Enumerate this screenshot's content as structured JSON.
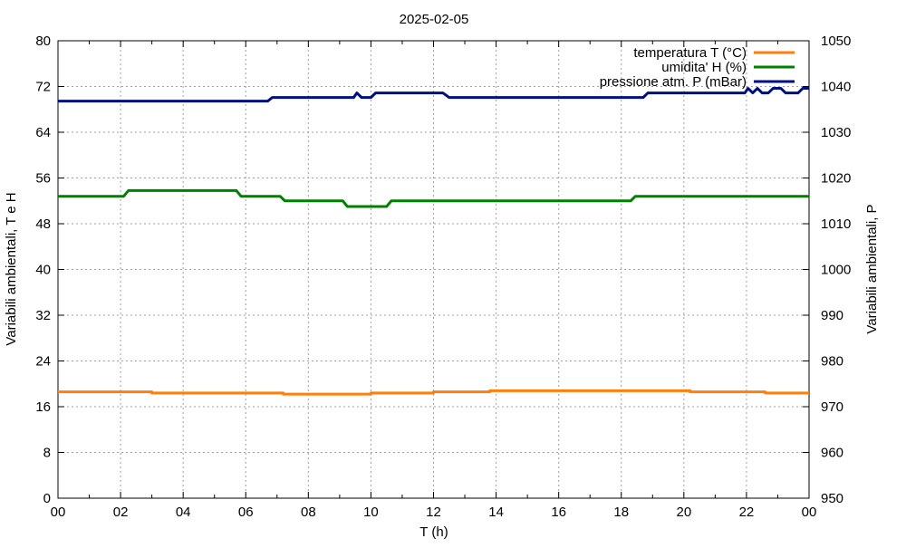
{
  "chart_data": {
    "type": "line",
    "title": "2025-02-05",
    "xlabel": "T (h)",
    "ylabel_left": "Variabili ambientali, T e H",
    "ylabel_right": "Variabili ambientali, P",
    "xlim": [
      0,
      24
    ],
    "ylim_left": [
      0,
      80
    ],
    "ylim_right": [
      950,
      1050
    ],
    "x_ticks": [
      "00",
      "02",
      "04",
      "06",
      "08",
      "10",
      "12",
      "14",
      "16",
      "18",
      "20",
      "22",
      "00"
    ],
    "y_ticks_left": [
      "0",
      "8",
      "16",
      "24",
      "32",
      "40",
      "48",
      "56",
      "64",
      "72",
      "80"
    ],
    "y_ticks_right": [
      "950",
      "960",
      "970",
      "980",
      "990",
      "1000",
      "1010",
      "1020",
      "1030",
      "1040",
      "1050"
    ],
    "grid": true,
    "legend_position": "top-right",
    "series": [
      {
        "name": "temperatura T (°C)",
        "axis": "left",
        "color": "#ff7f0e",
        "points": [
          [
            0,
            18.6
          ],
          [
            3.0,
            18.6
          ],
          [
            3.0,
            18.4
          ],
          [
            7.2,
            18.4
          ],
          [
            7.2,
            18.2
          ],
          [
            10.0,
            18.2
          ],
          [
            10.0,
            18.4
          ],
          [
            12.0,
            18.4
          ],
          [
            12.0,
            18.6
          ],
          [
            13.8,
            18.6
          ],
          [
            13.8,
            18.8
          ],
          [
            20.2,
            18.8
          ],
          [
            20.2,
            18.6
          ],
          [
            22.6,
            18.6
          ],
          [
            22.6,
            18.4
          ],
          [
            24.0,
            18.4
          ]
        ]
      },
      {
        "name": "umidita' H (%)",
        "axis": "left",
        "color": "#008000",
        "points": [
          [
            0,
            52.8
          ],
          [
            2.1,
            52.8
          ],
          [
            2.25,
            53.8
          ],
          [
            5.7,
            53.8
          ],
          [
            5.85,
            52.8
          ],
          [
            7.1,
            52.8
          ],
          [
            7.25,
            52.0
          ],
          [
            9.1,
            52.0
          ],
          [
            9.25,
            51.0
          ],
          [
            10.5,
            51.0
          ],
          [
            10.65,
            52.0
          ],
          [
            18.3,
            52.0
          ],
          [
            18.45,
            52.8
          ],
          [
            24.0,
            52.8
          ]
        ]
      },
      {
        "name": "pressione atm. P (mBar)",
        "axis": "right",
        "color": "#00107f",
        "points": [
          [
            0,
            1036.8
          ],
          [
            6.7,
            1036.8
          ],
          [
            6.85,
            1037.6
          ],
          [
            9.45,
            1037.6
          ],
          [
            9.55,
            1038.6
          ],
          [
            9.7,
            1037.6
          ],
          [
            10.0,
            1037.6
          ],
          [
            10.15,
            1038.6
          ],
          [
            12.3,
            1038.6
          ],
          [
            12.5,
            1037.6
          ],
          [
            18.7,
            1037.6
          ],
          [
            18.85,
            1038.6
          ],
          [
            21.95,
            1038.6
          ],
          [
            22.05,
            1039.6
          ],
          [
            22.2,
            1038.6
          ],
          [
            22.35,
            1039.6
          ],
          [
            22.5,
            1038.6
          ],
          [
            22.7,
            1038.6
          ],
          [
            22.85,
            1039.6
          ],
          [
            23.1,
            1039.6
          ],
          [
            23.25,
            1038.6
          ],
          [
            23.65,
            1038.6
          ],
          [
            23.8,
            1039.6
          ],
          [
            24.0,
            1039.6
          ]
        ]
      }
    ]
  }
}
